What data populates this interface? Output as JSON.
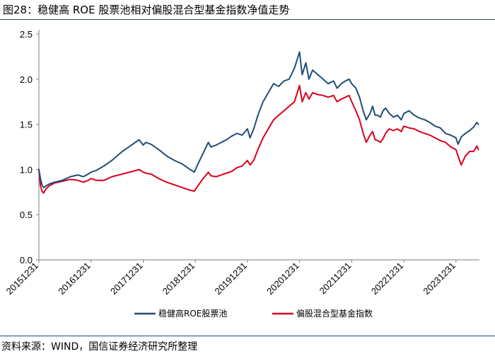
{
  "title": "图28：稳健高 ROE 股票池相对偏股混合型基金指数净值走势",
  "source": "资料来源：WIND，国信证券经济研究所整理",
  "colors": {
    "series1": "#1f4e79",
    "series2": "#d9001b",
    "axis": "#7f7f7f"
  },
  "chart_data": {
    "type": "line",
    "title": "稳健高 ROE 股票池相对偏股混合型基金指数净值走势",
    "xlabel": "",
    "ylabel": "",
    "ylim": [
      0,
      2.5
    ],
    "yticks": [
      "0.0",
      "0.5",
      "1.0",
      "1.5",
      "2.0",
      "2.5"
    ],
    "xlim": [
      2016.0,
      2024.45
    ],
    "x_ticks": [
      "20151231",
      "20161231",
      "20171231",
      "20181231",
      "20191231",
      "20201231",
      "20211231",
      "20221231",
      "20231231"
    ],
    "legend": "bottom-center",
    "series": [
      {
        "name": "稳健高ROE股票池",
        "color": "#1f4e79",
        "x": [
          2016.0,
          2016.03,
          2016.06,
          2016.09,
          2016.14,
          2016.2,
          2016.3,
          2016.45,
          2016.6,
          2016.75,
          2016.85,
          2016.95,
          2017.0,
          2017.1,
          2017.25,
          2017.4,
          2017.6,
          2017.8,
          2017.92,
          2018.0,
          2018.05,
          2018.15,
          2018.3,
          2018.45,
          2018.6,
          2018.75,
          2018.9,
          2018.98,
          2019.05,
          2019.15,
          2019.25,
          2019.3,
          2019.4,
          2019.5,
          2019.6,
          2019.7,
          2019.8,
          2019.9,
          2020.0,
          2020.05,
          2020.12,
          2020.2,
          2020.3,
          2020.4,
          2020.5,
          2020.6,
          2020.7,
          2020.8,
          2020.9,
          2021.0,
          2021.05,
          2021.12,
          2021.18,
          2021.25,
          2021.35,
          2021.45,
          2021.55,
          2021.65,
          2021.72,
          2021.8,
          2021.88,
          2021.95,
          2022.0,
          2022.08,
          2022.15,
          2022.22,
          2022.28,
          2022.35,
          2022.4,
          2022.45,
          2022.5,
          2022.55,
          2022.6,
          2022.65,
          2022.72,
          2022.8,
          2022.88,
          2022.95,
          2023.0,
          2023.1,
          2023.2,
          2023.3,
          2023.4,
          2023.5,
          2023.6,
          2023.7,
          2023.8,
          2023.9,
          2024.0,
          2024.04,
          2024.1,
          2024.18,
          2024.26,
          2024.34,
          2024.4,
          2024.43
        ],
        "values": [
          1.0,
          0.9,
          0.83,
          0.8,
          0.82,
          0.84,
          0.86,
          0.88,
          0.92,
          0.94,
          0.92,
          0.95,
          0.97,
          0.99,
          1.04,
          1.1,
          1.2,
          1.28,
          1.33,
          1.27,
          1.3,
          1.28,
          1.22,
          1.15,
          1.1,
          1.06,
          1.0,
          0.97,
          1.06,
          1.18,
          1.3,
          1.25,
          1.27,
          1.3,
          1.33,
          1.37,
          1.4,
          1.38,
          1.45,
          1.35,
          1.45,
          1.6,
          1.75,
          1.85,
          1.95,
          1.92,
          1.98,
          2.0,
          2.12,
          2.3,
          2.05,
          2.18,
          2.0,
          2.1,
          2.05,
          2.0,
          1.95,
          1.98,
          1.9,
          1.95,
          1.98,
          2.0,
          1.95,
          1.9,
          1.8,
          1.65,
          1.55,
          1.62,
          1.7,
          1.6,
          1.6,
          1.58,
          1.65,
          1.68,
          1.62,
          1.58,
          1.6,
          1.55,
          1.62,
          1.65,
          1.6,
          1.57,
          1.55,
          1.52,
          1.48,
          1.46,
          1.4,
          1.38,
          1.35,
          1.28,
          1.36,
          1.4,
          1.43,
          1.47,
          1.52,
          1.5
        ]
      },
      {
        "name": "偏股混合型基金指数",
        "color": "#d9001b",
        "x": [
          2016.0,
          2016.03,
          2016.06,
          2016.09,
          2016.14,
          2016.2,
          2016.3,
          2016.45,
          2016.6,
          2016.75,
          2016.85,
          2016.95,
          2017.0,
          2017.1,
          2017.25,
          2017.4,
          2017.6,
          2017.8,
          2017.92,
          2018.0,
          2018.05,
          2018.15,
          2018.3,
          2018.45,
          2018.6,
          2018.75,
          2018.9,
          2018.98,
          2019.05,
          2019.15,
          2019.25,
          2019.3,
          2019.4,
          2019.5,
          2019.6,
          2019.7,
          2019.8,
          2019.9,
          2020.0,
          2020.05,
          2020.12,
          2020.2,
          2020.3,
          2020.4,
          2020.5,
          2020.6,
          2020.7,
          2020.8,
          2020.9,
          2021.0,
          2021.05,
          2021.12,
          2021.18,
          2021.25,
          2021.35,
          2021.45,
          2021.55,
          2021.65,
          2021.72,
          2021.8,
          2021.88,
          2021.95,
          2022.0,
          2022.08,
          2022.15,
          2022.22,
          2022.28,
          2022.35,
          2022.4,
          2022.45,
          2022.5,
          2022.55,
          2022.6,
          2022.65,
          2022.72,
          2022.8,
          2022.88,
          2022.95,
          2023.0,
          2023.1,
          2023.2,
          2023.3,
          2023.4,
          2023.5,
          2023.6,
          2023.7,
          2023.8,
          2023.9,
          2024.0,
          2024.04,
          2024.1,
          2024.18,
          2024.26,
          2024.34,
          2024.4,
          2024.43
        ],
        "values": [
          1.0,
          0.82,
          0.76,
          0.74,
          0.79,
          0.82,
          0.85,
          0.87,
          0.89,
          0.88,
          0.86,
          0.88,
          0.9,
          0.88,
          0.88,
          0.92,
          0.95,
          0.98,
          1.0,
          0.97,
          0.96,
          0.95,
          0.9,
          0.86,
          0.83,
          0.8,
          0.77,
          0.76,
          0.82,
          0.9,
          0.97,
          0.93,
          0.92,
          0.94,
          0.96,
          0.98,
          1.02,
          1.04,
          1.1,
          1.05,
          1.1,
          1.22,
          1.35,
          1.45,
          1.55,
          1.6,
          1.65,
          1.7,
          1.75,
          1.93,
          1.75,
          1.85,
          1.78,
          1.85,
          1.83,
          1.82,
          1.8,
          1.82,
          1.75,
          1.78,
          1.8,
          1.82,
          1.75,
          1.65,
          1.55,
          1.4,
          1.3,
          1.38,
          1.42,
          1.33,
          1.32,
          1.3,
          1.34,
          1.4,
          1.45,
          1.43,
          1.45,
          1.42,
          1.48,
          1.46,
          1.45,
          1.42,
          1.4,
          1.38,
          1.35,
          1.32,
          1.3,
          1.25,
          1.22,
          1.15,
          1.05,
          1.15,
          1.2,
          1.2,
          1.26,
          1.22
        ]
      }
    ]
  }
}
